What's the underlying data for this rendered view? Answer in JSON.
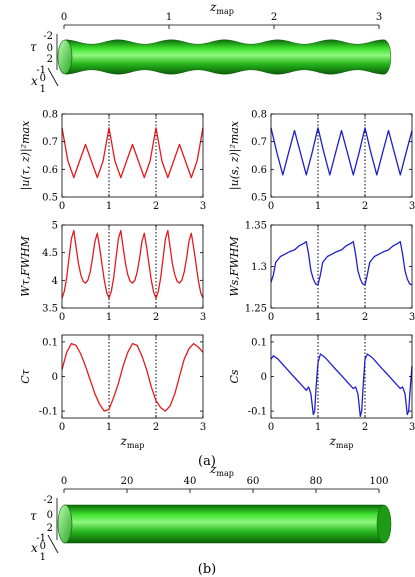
{
  "panel_labels": [
    "(a)",
    "(b)"
  ],
  "tubes": [
    {
      "type": "tube-3d",
      "xlabel": "z",
      "xlabel_sub": "map",
      "xlim": [
        0,
        3
      ],
      "xticks": [
        "0",
        "1",
        "2",
        "3"
      ],
      "tau_label": "τ",
      "tau_ticks": [
        "-2",
        "0",
        "2"
      ],
      "x_label": "x",
      "x_ticks": [
        "-1",
        "0",
        "1"
      ],
      "color": "#22c21a",
      "modulated": true
    },
    {
      "type": "tube-3d",
      "xlabel": "z",
      "xlabel_sub": "map",
      "xlim": [
        0,
        100
      ],
      "xticks": [
        "0",
        "20",
        "40",
        "60",
        "80",
        "100"
      ],
      "tau_label": "τ",
      "tau_ticks": [
        "-2",
        "0",
        "2"
      ],
      "x_label": "x",
      "x_ticks": [
        "-1",
        "0",
        "1"
      ],
      "color": "#22c21a",
      "modulated": false
    }
  ],
  "chart_data": [
    {
      "type": "line",
      "id": "u-tau",
      "ylabel": "|u(τ, z)|²max",
      "xlabel": "",
      "xlim": [
        0,
        3
      ],
      "ylim": [
        0.5,
        0.8
      ],
      "xticks": [
        "0",
        "1",
        "2",
        "3"
      ],
      "yticks": [
        "0.5",
        "0.6",
        "0.7",
        "0.8"
      ],
      "color": "#e41a1c",
      "vlines": [
        1,
        2
      ],
      "series": [
        {
          "x": [
            0,
            0.125,
            0.25,
            0.375,
            0.5,
            0.625,
            0.75,
            0.875,
            1,
            1.125,
            1.25,
            1.375,
            1.5,
            1.625,
            1.75,
            1.875,
            2,
            2.125,
            2.25,
            2.375,
            2.5,
            2.625,
            2.75,
            2.875,
            3
          ],
          "y": [
            0.75,
            0.63,
            0.57,
            0.63,
            0.69,
            0.63,
            0.57,
            0.63,
            0.75,
            0.63,
            0.57,
            0.63,
            0.69,
            0.63,
            0.57,
            0.63,
            0.75,
            0.63,
            0.57,
            0.63,
            0.69,
            0.63,
            0.57,
            0.63,
            0.75
          ]
        }
      ]
    },
    {
      "type": "line",
      "id": "u-s",
      "ylabel": "|u(s, z)|²max",
      "xlabel": "",
      "xlim": [
        0,
        3
      ],
      "ylim": [
        0.5,
        0.8
      ],
      "xticks": [
        "0",
        "1",
        "2",
        "3"
      ],
      "yticks": [
        "0.5",
        "0.6",
        "0.7",
        "0.8"
      ],
      "color": "#1f1fd1",
      "vlines": [
        1,
        2
      ],
      "series": [
        {
          "x": [
            0,
            0.125,
            0.25,
            0.375,
            0.5,
            0.625,
            0.75,
            0.875,
            1,
            1.125,
            1.25,
            1.375,
            1.5,
            1.625,
            1.75,
            1.875,
            2,
            2.125,
            2.25,
            2.375,
            2.5,
            2.625,
            2.75,
            2.875,
            3
          ],
          "y": [
            0.75,
            0.66,
            0.58,
            0.66,
            0.74,
            0.66,
            0.58,
            0.66,
            0.75,
            0.66,
            0.58,
            0.66,
            0.74,
            0.66,
            0.58,
            0.66,
            0.75,
            0.66,
            0.58,
            0.66,
            0.74,
            0.66,
            0.58,
            0.66,
            0.74
          ]
        }
      ]
    },
    {
      "type": "line",
      "id": "w-tau",
      "ylabel": "Wτ,FWHM",
      "xlabel": "",
      "xlim": [
        0,
        3
      ],
      "ylim": [
        3.5,
        5
      ],
      "xticks": [
        "0",
        "1",
        "2",
        "3"
      ],
      "yticks": [
        "3.5",
        "4",
        "4.5",
        "5"
      ],
      "color": "#e41a1c",
      "vlines": [
        1,
        2
      ],
      "series": [
        {
          "x": [
            0,
            0.05,
            0.1,
            0.15,
            0.2,
            0.25,
            0.3,
            0.35,
            0.4,
            0.45,
            0.5,
            0.55,
            0.6,
            0.65,
            0.7,
            0.75,
            0.8,
            0.85,
            0.9,
            0.95,
            1,
            1.05,
            1.1,
            1.15,
            1.2,
            1.25,
            1.3,
            1.35,
            1.4,
            1.45,
            1.5,
            1.55,
            1.6,
            1.65,
            1.7,
            1.75,
            1.8,
            1.85,
            1.9,
            1.95,
            2,
            2.05,
            2.1,
            2.15,
            2.2,
            2.25,
            2.3,
            2.35,
            2.4,
            2.45,
            2.5,
            2.55,
            2.6,
            2.65,
            2.7,
            2.75,
            2.8,
            2.85,
            2.9,
            2.95,
            3
          ],
          "y": [
            3.68,
            3.8,
            4.05,
            4.4,
            4.75,
            4.9,
            4.6,
            4.3,
            4.1,
            3.98,
            3.95,
            4.0,
            4.15,
            4.4,
            4.7,
            4.85,
            4.6,
            4.3,
            4.0,
            3.78,
            3.68,
            3.8,
            4.05,
            4.4,
            4.75,
            4.9,
            4.6,
            4.3,
            4.1,
            3.98,
            3.95,
            4.0,
            4.15,
            4.4,
            4.7,
            4.85,
            4.6,
            4.3,
            4.0,
            3.78,
            3.68,
            3.8,
            4.05,
            4.4,
            4.75,
            4.9,
            4.6,
            4.3,
            4.1,
            3.98,
            3.95,
            4.0,
            4.15,
            4.4,
            4.7,
            4.85,
            4.6,
            4.3,
            4.0,
            3.78,
            3.68
          ]
        }
      ]
    },
    {
      "type": "line",
      "id": "w-s",
      "ylabel": "Ws,FWHM",
      "xlabel": "",
      "xlim": [
        0,
        3
      ],
      "ylim": [
        1.25,
        1.35
      ],
      "xticks": [
        "0",
        "1",
        "2",
        "3"
      ],
      "yticks": [
        "1.25",
        "1.3",
        "1.35"
      ],
      "color": "#1f1fd1",
      "vlines": [
        1,
        2
      ],
      "series": [
        {
          "x": [
            0,
            0.05,
            0.1,
            0.2,
            0.3,
            0.4,
            0.5,
            0.6,
            0.7,
            0.75,
            0.8,
            0.85,
            0.9,
            0.95,
            1,
            1.05,
            1.1,
            1.2,
            1.3,
            1.4,
            1.5,
            1.6,
            1.7,
            1.75,
            1.8,
            1.85,
            1.9,
            1.95,
            2,
            2.05,
            2.1,
            2.2,
            2.3,
            2.4,
            2.5,
            2.6,
            2.7,
            2.75,
            2.8,
            2.85,
            2.9,
            2.95,
            3
          ],
          "y": [
            1.281,
            1.29,
            1.305,
            1.312,
            1.315,
            1.318,
            1.32,
            1.325,
            1.328,
            1.33,
            1.315,
            1.295,
            1.285,
            1.279,
            1.278,
            1.29,
            1.305,
            1.312,
            1.315,
            1.318,
            1.32,
            1.325,
            1.328,
            1.33,
            1.315,
            1.295,
            1.285,
            1.279,
            1.278,
            1.29,
            1.305,
            1.312,
            1.315,
            1.318,
            1.32,
            1.325,
            1.328,
            1.33,
            1.315,
            1.295,
            1.285,
            1.279,
            1.278
          ]
        }
      ]
    },
    {
      "type": "line",
      "id": "c-tau",
      "ylabel": "Cτ",
      "xlabel": "z",
      "xlabel_sub": "map",
      "xlim": [
        0,
        3
      ],
      "ylim": [
        -0.12,
        0.12
      ],
      "xticks": [
        "0",
        "1",
        "2",
        "3"
      ],
      "yticks": [
        "-0.1",
        "0",
        "0.1"
      ],
      "color": "#e41a1c",
      "vlines": [
        1,
        2
      ],
      "series": [
        {
          "x": [
            0,
            0.1,
            0.2,
            0.3,
            0.4,
            0.5,
            0.6,
            0.7,
            0.8,
            0.9,
            1,
            1.1,
            1.2,
            1.3,
            1.4,
            1.5,
            1.6,
            1.7,
            1.8,
            1.9,
            2,
            2.1,
            2.2,
            2.3,
            2.4,
            2.5,
            2.6,
            2.7,
            2.8,
            2.9,
            3
          ],
          "y": [
            0.02,
            0.07,
            0.095,
            0.09,
            0.065,
            0.03,
            -0.01,
            -0.05,
            -0.08,
            -0.1,
            -0.095,
            -0.06,
            -0.02,
            0.03,
            0.07,
            0.095,
            0.09,
            0.06,
            0.02,
            -0.03,
            -0.07,
            -0.09,
            -0.1,
            -0.085,
            -0.05,
            0.0,
            0.05,
            0.08,
            0.095,
            0.085,
            0.07
          ]
        }
      ]
    },
    {
      "type": "line",
      "id": "c-s",
      "ylabel": "Cs",
      "xlabel": "z",
      "xlabel_sub": "map",
      "xlim": [
        0,
        3
      ],
      "ylim": [
        -0.12,
        0.12
      ],
      "xticks": [
        "0",
        "1",
        "2",
        "3"
      ],
      "yticks": [
        "-0.1",
        "0",
        "0.1"
      ],
      "color": "#1f1fd1",
      "vlines": [
        1,
        2
      ],
      "series": [
        {
          "x": [
            0,
            0.05,
            0.15,
            0.25,
            0.35,
            0.45,
            0.55,
            0.65,
            0.75,
            0.8,
            0.85,
            0.9,
            0.93,
            0.96,
            1,
            1.05,
            1.15,
            1.25,
            1.35,
            1.45,
            1.55,
            1.65,
            1.75,
            1.8,
            1.85,
            1.9,
            1.93,
            1.96,
            2,
            2.05,
            2.15,
            2.25,
            2.35,
            2.45,
            2.55,
            2.65,
            2.75,
            2.8,
            2.85,
            2.9,
            2.93,
            2.96,
            3
          ],
          "y": [
            0.05,
            0.06,
            0.05,
            0.035,
            0.02,
            0.005,
            -0.01,
            -0.025,
            -0.04,
            -0.03,
            -0.05,
            -0.11,
            -0.1,
            -0.03,
            0.04,
            0.065,
            0.055,
            0.04,
            0.025,
            0.01,
            -0.005,
            -0.02,
            -0.035,
            -0.03,
            -0.05,
            -0.115,
            -0.1,
            -0.03,
            0.05,
            0.065,
            0.055,
            0.04,
            0.025,
            0.01,
            -0.005,
            -0.02,
            -0.035,
            -0.03,
            -0.05,
            -0.11,
            -0.1,
            -0.04,
            0.03
          ]
        }
      ]
    }
  ]
}
